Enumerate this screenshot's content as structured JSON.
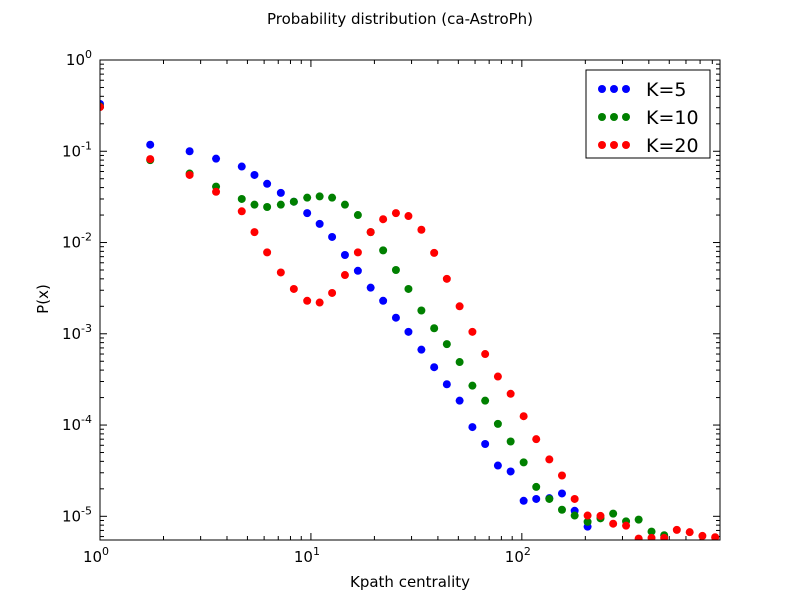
{
  "chart_data": {
    "type": "scatter",
    "title": "Probability distribution (ca-AstroPh)",
    "xlabel": "Kpath centrality",
    "ylabel": "P(x)",
    "xscale": "log",
    "yscale": "log",
    "xlim": [
      1,
      870
    ],
    "ylim": [
      5.5e-06,
      1
    ],
    "x_ticks": [
      {
        "value": 1,
        "base": "10",
        "exp": "0"
      },
      {
        "value": 10,
        "base": "10",
        "exp": "1"
      },
      {
        "value": 100,
        "base": "10",
        "exp": "2"
      }
    ],
    "y_ticks": [
      {
        "value": 1,
        "base": "10",
        "exp": "0"
      },
      {
        "value": 0.1,
        "base": "10",
        "exp": "-1"
      },
      {
        "value": 0.01,
        "base": "10",
        "exp": "-2"
      },
      {
        "value": 0.001,
        "base": "10",
        "exp": "-3"
      },
      {
        "value": 0.0001,
        "base": "10",
        "exp": "-4"
      },
      {
        "value": 1e-05,
        "base": "10",
        "exp": "-5"
      }
    ],
    "legend_position": "top-right",
    "grid": false,
    "series": [
      {
        "name": "K=5",
        "color": "#0000ff",
        "points": [
          [
            1.0,
            0.33
          ],
          [
            1.73,
            0.118
          ],
          [
            2.66,
            0.1
          ],
          [
            3.55,
            0.083
          ],
          [
            4.7,
            0.068
          ],
          [
            5.4,
            0.055
          ],
          [
            6.2,
            0.044
          ],
          [
            7.2,
            0.035
          ],
          [
            8.3,
            0.028
          ],
          [
            9.6,
            0.021
          ],
          [
            11.0,
            0.016
          ],
          [
            12.6,
            0.0115
          ],
          [
            14.5,
            0.0073
          ],
          [
            16.7,
            0.0049
          ],
          [
            19.2,
            0.0032
          ],
          [
            22.0,
            0.0023
          ],
          [
            25.3,
            0.0015
          ],
          [
            29.0,
            0.00105
          ],
          [
            33.4,
            0.00067
          ],
          [
            38.4,
            0.00043
          ],
          [
            44.1,
            0.00028
          ],
          [
            50.7,
            0.000185
          ],
          [
            58.3,
            9.5e-05
          ],
          [
            67.0,
            6.2e-05
          ],
          [
            77.0,
            3.6e-05
          ],
          [
            88.5,
            3.1e-05
          ],
          [
            102,
            1.48e-05
          ],
          [
            117,
            1.55e-05
          ],
          [
            135,
            1.58e-05
          ],
          [
            155,
            1.78e-05
          ],
          [
            178,
            1.15e-05
          ],
          [
            205,
            7.7e-06
          ]
        ]
      },
      {
        "name": "K=10",
        "color": "#008000",
        "points": [
          [
            1.0,
            0.31
          ],
          [
            1.73,
            0.08
          ],
          [
            2.66,
            0.057
          ],
          [
            3.55,
            0.041
          ],
          [
            4.7,
            0.03
          ],
          [
            5.4,
            0.026
          ],
          [
            6.2,
            0.0245
          ],
          [
            7.2,
            0.026
          ],
          [
            8.3,
            0.028
          ],
          [
            9.6,
            0.031
          ],
          [
            11.0,
            0.032
          ],
          [
            12.6,
            0.031
          ],
          [
            14.5,
            0.026
          ],
          [
            16.7,
            0.02
          ],
          [
            19.2,
            0.013
          ],
          [
            22.0,
            0.0082
          ],
          [
            25.3,
            0.005
          ],
          [
            29.0,
            0.0031
          ],
          [
            33.4,
            0.0018
          ],
          [
            38.4,
            0.00115
          ],
          [
            44.1,
            0.00077
          ],
          [
            50.7,
            0.00049
          ],
          [
            58.3,
            0.00027
          ],
          [
            67.0,
            0.000185
          ],
          [
            77.0,
            0.000103
          ],
          [
            88.5,
            6.6e-05
          ],
          [
            102,
            3.9e-05
          ],
          [
            117,
            2.1e-05
          ],
          [
            135,
            1.55e-05
          ],
          [
            155,
            1.18e-05
          ],
          [
            178,
            1.02e-05
          ],
          [
            205,
            8.7e-06
          ],
          [
            236,
            9.5e-06
          ],
          [
            271,
            1.07e-05
          ],
          [
            312,
            8.8e-06
          ],
          [
            358,
            9.2e-06
          ],
          [
            412,
            6.8e-06
          ],
          [
            473,
            6.2e-06
          ]
        ]
      },
      {
        "name": "K=20",
        "color": "#ff0000",
        "points": [
          [
            1.0,
            0.305
          ],
          [
            1.73,
            0.082
          ],
          [
            2.66,
            0.055
          ],
          [
            3.55,
            0.036
          ],
          [
            4.7,
            0.022
          ],
          [
            5.4,
            0.013
          ],
          [
            6.2,
            0.0078
          ],
          [
            7.2,
            0.0047
          ],
          [
            8.3,
            0.0031
          ],
          [
            9.6,
            0.0023
          ],
          [
            11.0,
            0.0022
          ],
          [
            12.6,
            0.0028
          ],
          [
            14.5,
            0.0044
          ],
          [
            16.7,
            0.0078
          ],
          [
            19.2,
            0.013
          ],
          [
            22.0,
            0.018
          ],
          [
            25.3,
            0.021
          ],
          [
            29.0,
            0.0195
          ],
          [
            33.4,
            0.0138
          ],
          [
            38.4,
            0.0077
          ],
          [
            44.1,
            0.004
          ],
          [
            50.7,
            0.002
          ],
          [
            58.3,
            0.00105
          ],
          [
            67.0,
            0.0006
          ],
          [
            77.0,
            0.00034
          ],
          [
            88.5,
            0.00022
          ],
          [
            102,
            0.000125
          ],
          [
            117,
            7e-05
          ],
          [
            135,
            4.2e-05
          ],
          [
            155,
            2.8e-05
          ],
          [
            178,
            1.55e-05
          ],
          [
            205,
            1.02e-05
          ],
          [
            236,
            1.01e-05
          ],
          [
            271,
            8.3e-06
          ],
          [
            312,
            7.9e-06
          ],
          [
            358,
            5.7e-06
          ],
          [
            412,
            5.8e-06
          ],
          [
            473,
            5.8e-06
          ],
          [
            543,
            7.1e-06
          ],
          [
            625,
            6.7e-06
          ],
          [
            718,
            6.1e-06
          ],
          [
            825,
            5.9e-06
          ]
        ]
      }
    ]
  }
}
